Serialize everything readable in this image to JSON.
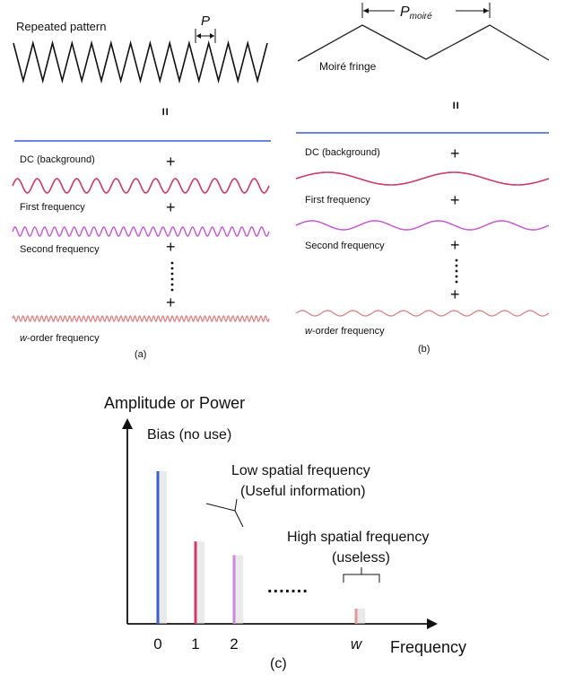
{
  "panel_a": {
    "title": "Repeated pattern",
    "period_label": "P",
    "equals": "=",
    "dc_label": "DC (background)",
    "first_label": "First frequency",
    "second_label": "Second frequency",
    "w_label_prefix": "w",
    "w_label_suffix": "-order frequency",
    "caption": "(a)",
    "plus": "+"
  },
  "panel_b": {
    "period_label_main": "P",
    "period_label_sub": "moiré",
    "fringe_label": "Moiré fringe",
    "equals": "=",
    "dc_label": "DC (background)",
    "first_label": "First frequency",
    "second_label": "Second frequency",
    "w_label_prefix": "w",
    "w_label_suffix": "-order frequency",
    "caption": "(b)",
    "plus": "+"
  },
  "panel_c": {
    "y_axis_label": "Amplitude or Power",
    "x_axis_label": "Frequency",
    "bias_label": "Bias (no use)",
    "low_label_1": "Low spatial frequency",
    "low_label_2": "(Useful information)",
    "high_label_1": "High spatial frequency",
    "high_label_2": "(useless)",
    "ellipsis": ".......",
    "caption": "(c)"
  },
  "chart_data": {
    "type": "bar",
    "categories": [
      "0",
      "1",
      "2",
      "w"
    ],
    "values": [
      1.0,
      0.54,
      0.45,
      0.1
    ],
    "colors": [
      "#3a5fd0",
      "#d03a66",
      "#c98ad8",
      "#e59a9a"
    ],
    "xlabel": "Frequency",
    "ylabel": "Amplitude or Power",
    "ylim": [
      0,
      1.3
    ]
  },
  "colors": {
    "dc_line": "#3a5fd0",
    "first": "#d03a66",
    "second": "#c84ad8",
    "w_order": "#e07a7a",
    "zigzag": "#111111"
  }
}
